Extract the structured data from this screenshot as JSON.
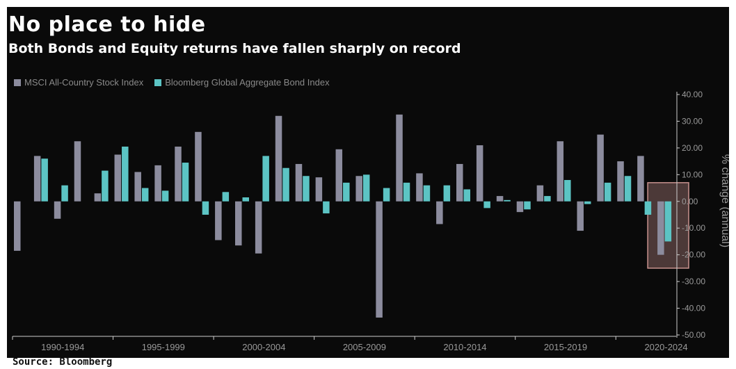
{
  "chart_data": {
    "type": "bar",
    "title": "No place to hide",
    "subtitle": "Both Bonds and Equity returns have fallen sharply on record",
    "ylabel": "% change (annual)",
    "ylim": [
      -50,
      40
    ],
    "y_ticks": [
      "40.00",
      "30.00",
      "20.00",
      "10.00",
      "0.00",
      "-10.00",
      "-20.00",
      "-30.00",
      "-40.00",
      "-50.00"
    ],
    "x_tick_labels": [
      "1990-1994",
      "1995-1999",
      "2000-2004",
      "2005-2009",
      "2010-2014",
      "2015-2019",
      "2020-2024"
    ],
    "categories": [
      "1990",
      "1991",
      "1992",
      "1993",
      "1994",
      "1995",
      "1996",
      "1997",
      "1998",
      "1999",
      "2000",
      "2001",
      "2002",
      "2003",
      "2004",
      "2005",
      "2006",
      "2007",
      "2008",
      "2009",
      "2010",
      "2011",
      "2012",
      "2013",
      "2014",
      "2015",
      "2016",
      "2017",
      "2018",
      "2019",
      "2020",
      "2021",
      "2022"
    ],
    "series": [
      {
        "name": "MSCI All-Country Stock Index",
        "color": "#8c8c9e",
        "values": [
          -18.5,
          17.0,
          -6.5,
          22.5,
          3.0,
          17.5,
          11.0,
          13.5,
          20.5,
          26.0,
          -14.5,
          -16.5,
          -19.5,
          32.0,
          14.0,
          9.0,
          19.5,
          9.5,
          -43.5,
          32.5,
          10.5,
          -8.5,
          14.0,
          21.0,
          2.0,
          -4.0,
          6.0,
          22.5,
          -11.0,
          25.0,
          15.0,
          17.0,
          -20.0
        ]
      },
      {
        "name": "Bloomberg Global Aggregate Bond Index",
        "color": "#5cc4c4",
        "values": [
          null,
          16.0,
          6.0,
          null,
          11.5,
          20.5,
          5.0,
          4.0,
          14.5,
          -5.0,
          3.5,
          1.5,
          17.0,
          12.5,
          9.5,
          -4.5,
          7.0,
          10.0,
          5.0,
          7.0,
          6.0,
          6.0,
          4.5,
          -2.5,
          0.5,
          -3.0,
          2.0,
          8.0,
          -1.0,
          7.0,
          9.5,
          -5.0,
          -15.0
        ]
      }
    ],
    "highlight": {
      "categories": [
        "2022"
      ],
      "color": "#c9938f"
    },
    "legend_position": "top-left",
    "grid": false
  },
  "source": "Source: Bloomberg"
}
